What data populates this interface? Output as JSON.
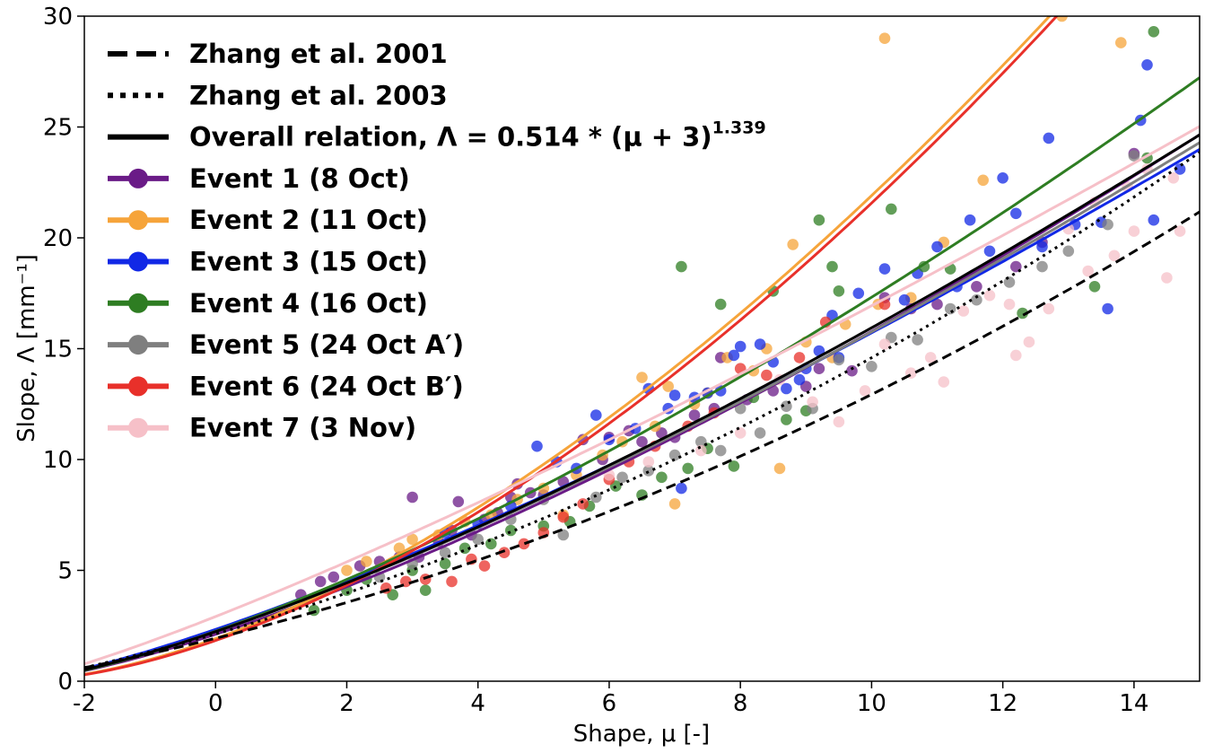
{
  "chart_data": {
    "type": "scatter",
    "xlabel": "Shape, μ [-]",
    "ylabel": "Slope, Λ [mm⁻¹]",
    "xlim": [
      -2,
      15
    ],
    "ylim": [
      0,
      30
    ],
    "xticks": [
      "-2",
      "0",
      "2",
      "4",
      "6",
      "8",
      "10",
      "12",
      "14"
    ],
    "yticks": [
      "0",
      "5",
      "10",
      "15",
      "20",
      "25",
      "30"
    ],
    "grid": false,
    "legend_position": "top-left",
    "reference_lines": [
      {
        "name": "Zhang et al. 2001",
        "style": "dashed",
        "color": "#000000"
      },
      {
        "name": "Zhang et al. 2003",
        "style": "dotted",
        "color": "#000000"
      },
      {
        "name": "Overall relation, Λ = 0.514 * (μ + 3)",
        "exponent": "1.339",
        "style": "solid",
        "color": "#000000",
        "a": 0.514,
        "b": 1.339
      }
    ],
    "series": [
      {
        "name": "Event 1 (8 Oct)",
        "color": "#6a1b87",
        "a": 0.47,
        "b": 1.37,
        "points": [
          [
            1.3,
            3.9
          ],
          [
            1.6,
            4.5
          ],
          [
            1.8,
            4.7
          ],
          [
            2.2,
            5.2
          ],
          [
            2.5,
            5.4
          ],
          [
            2.8,
            5.6
          ],
          [
            3.0,
            8.3
          ],
          [
            3.1,
            5.6
          ],
          [
            3.4,
            6.3
          ],
          [
            3.6,
            6.8
          ],
          [
            3.7,
            8.1
          ],
          [
            3.9,
            6.6
          ],
          [
            4.1,
            7.3
          ],
          [
            4.3,
            7.6
          ],
          [
            4.5,
            8.3
          ],
          [
            4.6,
            8.9
          ],
          [
            4.8,
            8.5
          ],
          [
            5.0,
            8.4
          ],
          [
            5.3,
            9.0
          ],
          [
            5.6,
            10.9
          ],
          [
            5.9,
            10.0
          ],
          [
            6.0,
            11.0
          ],
          [
            6.3,
            11.3
          ],
          [
            6.5,
            10.8
          ],
          [
            6.8,
            11.2
          ],
          [
            7.0,
            11.0
          ],
          [
            7.3,
            12.0
          ],
          [
            7.6,
            12.3
          ],
          [
            7.7,
            14.6
          ],
          [
            8.1,
            12.7
          ],
          [
            8.5,
            13.1
          ],
          [
            9.0,
            13.3
          ],
          [
            9.2,
            14.1
          ],
          [
            9.7,
            14.0
          ],
          [
            10.2,
            17.3
          ],
          [
            10.6,
            16.8
          ],
          [
            11.0,
            17.0
          ],
          [
            11.6,
            17.8
          ],
          [
            12.2,
            18.7
          ],
          [
            12.6,
            19.8
          ],
          [
            14.0,
            23.8
          ]
        ]
      },
      {
        "name": "Event 2 (11 Oct)",
        "color": "#f6a43a",
        "a": 0.31,
        "b": 1.66,
        "points": [
          [
            2.0,
            5.0
          ],
          [
            2.3,
            5.4
          ],
          [
            2.8,
            6.0
          ],
          [
            3.0,
            6.4
          ],
          [
            3.4,
            6.6
          ],
          [
            3.8,
            7.2
          ],
          [
            4.2,
            7.5
          ],
          [
            4.6,
            8.2
          ],
          [
            5.0,
            8.7
          ],
          [
            5.3,
            7.5
          ],
          [
            5.5,
            9.3
          ],
          [
            5.9,
            10.2
          ],
          [
            6.2,
            10.8
          ],
          [
            6.5,
            13.7
          ],
          [
            6.7,
            11.5
          ],
          [
            6.9,
            13.3
          ],
          [
            7.0,
            8.0
          ],
          [
            7.3,
            12.5
          ],
          [
            7.5,
            13.0
          ],
          [
            7.8,
            14.6
          ],
          [
            8.2,
            14.0
          ],
          [
            8.4,
            15.0
          ],
          [
            8.6,
            9.6
          ],
          [
            8.8,
            19.7
          ],
          [
            9.0,
            15.3
          ],
          [
            9.4,
            14.6
          ],
          [
            9.6,
            16.1
          ],
          [
            10.1,
            17.0
          ],
          [
            10.2,
            29.0
          ],
          [
            10.6,
            17.3
          ],
          [
            11.1,
            19.8
          ],
          [
            11.7,
            22.6
          ],
          [
            12.9,
            30.0
          ],
          [
            13.8,
            28.8
          ]
        ]
      },
      {
        "name": "Event 3 (15 Oct)",
        "color": "#1128e6",
        "a": 0.56,
        "b": 1.3,
        "points": [
          [
            3.5,
            6.7
          ],
          [
            4.0,
            7.1
          ],
          [
            4.5,
            7.9
          ],
          [
            4.9,
            10.6
          ],
          [
            5.2,
            9.9
          ],
          [
            5.5,
            9.6
          ],
          [
            5.8,
            12.0
          ],
          [
            6.0,
            10.9
          ],
          [
            6.4,
            11.4
          ],
          [
            6.6,
            13.2
          ],
          [
            6.9,
            12.3
          ],
          [
            7.0,
            12.9
          ],
          [
            7.1,
            8.7
          ],
          [
            7.3,
            12.8
          ],
          [
            7.5,
            13.0
          ],
          [
            7.7,
            13.1
          ],
          [
            7.9,
            14.7
          ],
          [
            8.0,
            15.1
          ],
          [
            8.3,
            15.2
          ],
          [
            8.5,
            14.4
          ],
          [
            8.7,
            13.2
          ],
          [
            8.9,
            13.6
          ],
          [
            9.0,
            14.1
          ],
          [
            9.2,
            14.9
          ],
          [
            9.4,
            16.5
          ],
          [
            9.5,
            14.6
          ],
          [
            9.8,
            17.5
          ],
          [
            10.2,
            18.6
          ],
          [
            10.5,
            17.2
          ],
          [
            10.7,
            18.4
          ],
          [
            11.0,
            19.6
          ],
          [
            11.3,
            17.8
          ],
          [
            11.5,
            20.8
          ],
          [
            11.8,
            19.4
          ],
          [
            12.0,
            22.7
          ],
          [
            12.2,
            21.1
          ],
          [
            12.6,
            19.6
          ],
          [
            12.7,
            24.5
          ],
          [
            13.1,
            20.6
          ],
          [
            13.5,
            20.7
          ],
          [
            13.6,
            16.8
          ],
          [
            14.1,
            25.3
          ],
          [
            14.2,
            27.8
          ],
          [
            14.3,
            20.8
          ],
          [
            14.7,
            23.1
          ]
        ]
      },
      {
        "name": "Event 4 (16 Oct)",
        "color": "#2e7d22",
        "a": 0.49,
        "b": 1.39,
        "points": [
          [
            1.5,
            3.2
          ],
          [
            2.0,
            4.1
          ],
          [
            2.3,
            4.6
          ],
          [
            2.7,
            3.9
          ],
          [
            3.0,
            5.0
          ],
          [
            3.2,
            4.1
          ],
          [
            3.5,
            5.3
          ],
          [
            3.8,
            6.0
          ],
          [
            4.2,
            6.2
          ],
          [
            4.5,
            6.8
          ],
          [
            5.0,
            7.0
          ],
          [
            5.4,
            7.2
          ],
          [
            5.7,
            7.9
          ],
          [
            6.1,
            8.8
          ],
          [
            6.5,
            8.4
          ],
          [
            6.8,
            9.2
          ],
          [
            7.1,
            18.7
          ],
          [
            7.2,
            9.6
          ],
          [
            7.5,
            10.5
          ],
          [
            7.7,
            17.0
          ],
          [
            7.9,
            9.7
          ],
          [
            8.2,
            12.8
          ],
          [
            8.5,
            17.6
          ],
          [
            8.7,
            11.8
          ],
          [
            9.0,
            12.2
          ],
          [
            9.2,
            20.8
          ],
          [
            9.4,
            18.7
          ],
          [
            9.5,
            17.6
          ],
          [
            10.3,
            21.3
          ],
          [
            10.8,
            18.7
          ],
          [
            11.2,
            18.6
          ],
          [
            12.3,
            16.6
          ],
          [
            13.4,
            17.8
          ],
          [
            14.2,
            23.6
          ],
          [
            14.3,
            29.3
          ]
        ]
      },
      {
        "name": "Event 5 (24 Oct A′)",
        "color": "#7f7f7f",
        "a": 0.52,
        "b": 1.33,
        "points": [
          [
            2.5,
            4.7
          ],
          [
            3.0,
            5.3
          ],
          [
            3.5,
            5.8
          ],
          [
            4.0,
            6.4
          ],
          [
            4.5,
            7.3
          ],
          [
            5.0,
            8.2
          ],
          [
            5.3,
            6.6
          ],
          [
            5.8,
            8.3
          ],
          [
            6.2,
            9.2
          ],
          [
            6.6,
            9.5
          ],
          [
            7.0,
            10.2
          ],
          [
            7.4,
            10.8
          ],
          [
            7.7,
            10.4
          ],
          [
            8.0,
            12.3
          ],
          [
            8.3,
            11.2
          ],
          [
            8.7,
            12.4
          ],
          [
            9.1,
            12.3
          ],
          [
            9.5,
            14.5
          ],
          [
            10.0,
            14.2
          ],
          [
            10.3,
            15.5
          ],
          [
            10.7,
            15.4
          ],
          [
            11.2,
            16.8
          ],
          [
            11.6,
            17.2
          ],
          [
            12.1,
            18.0
          ],
          [
            12.6,
            18.7
          ],
          [
            13.0,
            19.4
          ],
          [
            13.6,
            20.6
          ],
          [
            14.0,
            23.7
          ]
        ]
      },
      {
        "name": "Event 6 (24 Oct B′)",
        "color": "#e8302a",
        "a": 0.29,
        "b": 1.68,
        "points": [
          [
            2.6,
            4.2
          ],
          [
            2.9,
            4.5
          ],
          [
            3.2,
            4.6
          ],
          [
            3.6,
            4.5
          ],
          [
            3.9,
            5.5
          ],
          [
            4.1,
            5.2
          ],
          [
            4.4,
            5.8
          ],
          [
            4.7,
            6.2
          ],
          [
            5.0,
            6.7
          ],
          [
            5.3,
            7.4
          ],
          [
            5.6,
            8.0
          ],
          [
            6.0,
            9.1
          ],
          [
            6.3,
            9.9
          ],
          [
            6.7,
            10.6
          ],
          [
            7.2,
            11.5
          ],
          [
            7.6,
            12.1
          ],
          [
            8.0,
            14.1
          ],
          [
            8.4,
            13.8
          ],
          [
            8.9,
            14.6
          ],
          [
            9.3,
            16.2
          ],
          [
            10.2,
            17.0
          ]
        ]
      },
      {
        "name": "Event 7 (3 Nov)",
        "color": "#f6c0c8",
        "a": 0.78,
        "b": 1.2,
        "points": [
          [
            6.0,
            9.3
          ],
          [
            6.6,
            9.9
          ],
          [
            7.4,
            10.4
          ],
          [
            8.0,
            11.2
          ],
          [
            8.6,
            13.6
          ],
          [
            9.1,
            12.6
          ],
          [
            9.5,
            11.7
          ],
          [
            9.9,
            13.1
          ],
          [
            10.2,
            15.2
          ],
          [
            10.6,
            13.9
          ],
          [
            10.9,
            14.6
          ],
          [
            11.1,
            13.5
          ],
          [
            11.4,
            16.7
          ],
          [
            11.8,
            17.4
          ],
          [
            12.1,
            17.0
          ],
          [
            12.2,
            14.7
          ],
          [
            12.4,
            15.3
          ],
          [
            12.7,
            16.8
          ],
          [
            13.0,
            20.4
          ],
          [
            13.3,
            18.5
          ],
          [
            13.4,
            21.6
          ],
          [
            13.7,
            19.2
          ],
          [
            13.9,
            22.3
          ],
          [
            14.0,
            20.3
          ],
          [
            14.2,
            23.1
          ],
          [
            14.5,
            18.2
          ],
          [
            14.6,
            22.7
          ],
          [
            14.7,
            20.3
          ]
        ]
      }
    ]
  }
}
